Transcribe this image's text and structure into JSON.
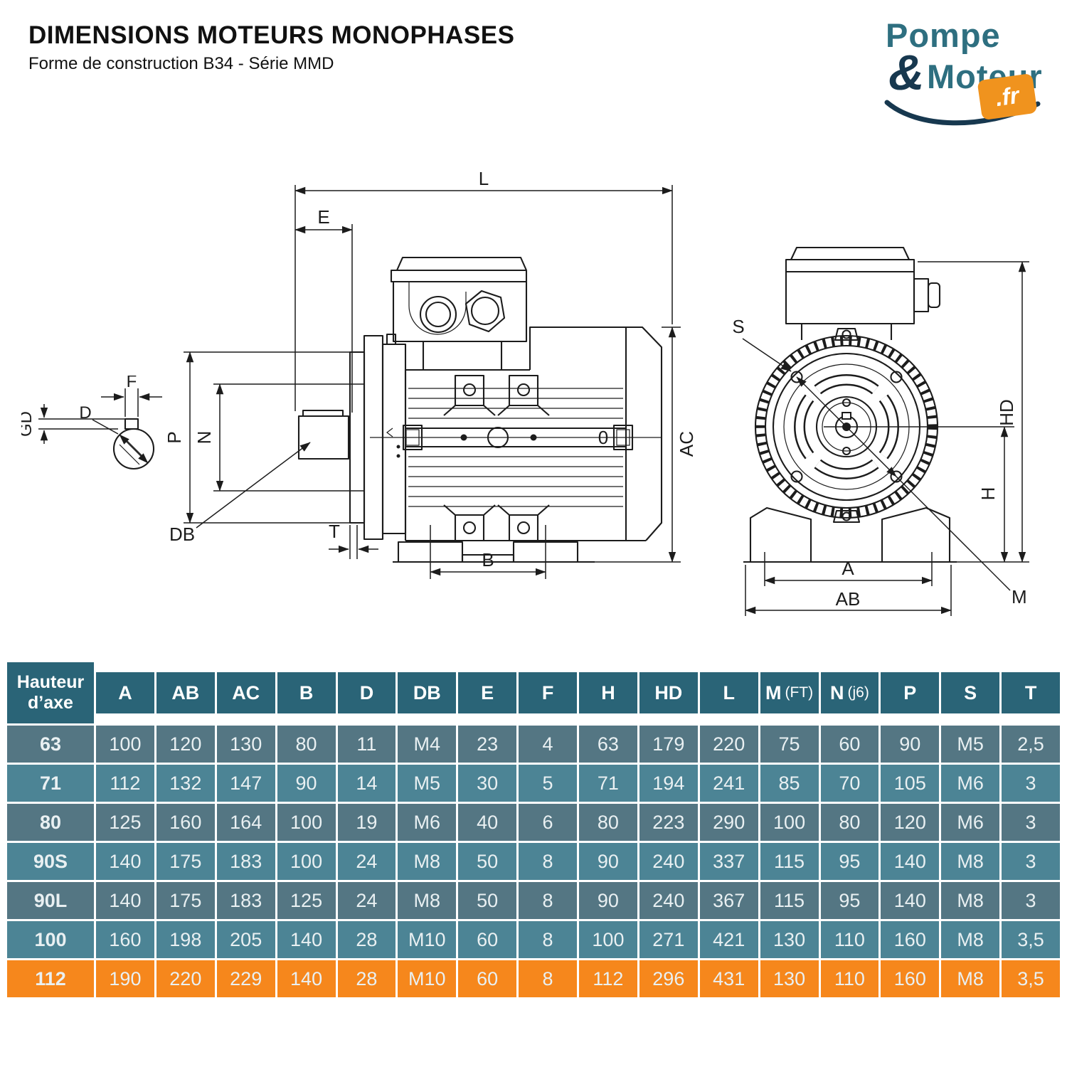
{
  "header": {
    "title": "DIMENSIONS MOTEURS MONOPHASES",
    "subtitle": "Forme de construction B34 - Série MMD"
  },
  "logo": {
    "word1": "Pompe",
    "amp": "&",
    "word2": "Moteur",
    "tld": ".fr",
    "teal": "#2e6f80",
    "navy": "#17384f",
    "orange": "#f0931e"
  },
  "diagrams": {
    "shaft_section": {
      "labels": {
        "f": "F",
        "d": "D",
        "gd": "GD"
      }
    },
    "side_view": {
      "labels": {
        "l": "L",
        "e": "E",
        "p": "P",
        "n": "N",
        "db": "DB",
        "t": "T",
        "b": "B",
        "ac": "AC",
        "o": "0"
      }
    },
    "front_view": {
      "labels": {
        "s": "S",
        "hd": "HD",
        "h": "H",
        "a": "A",
        "ab": "AB",
        "m": "M"
      }
    }
  },
  "table": {
    "corner_label": "Hauteur d’axe",
    "columns": [
      {
        "label": "A"
      },
      {
        "label": "AB"
      },
      {
        "label": "AC"
      },
      {
        "label": "B"
      },
      {
        "label": "D"
      },
      {
        "label": "DB"
      },
      {
        "label": "E"
      },
      {
        "label": "F"
      },
      {
        "label": "H"
      },
      {
        "label": "HD"
      },
      {
        "label": "L"
      },
      {
        "label": "M",
        "note": "(FT)"
      },
      {
        "label": "N",
        "note": "(j6)"
      },
      {
        "label": "P"
      },
      {
        "label": "S"
      },
      {
        "label": "T"
      }
    ],
    "rows": [
      {
        "label": "63",
        "variant": "dark",
        "values": [
          "100",
          "120",
          "130",
          "80",
          "11",
          "M4",
          "23",
          "4",
          "63",
          "179",
          "220",
          "75",
          "60",
          "90",
          "M5",
          "2,5"
        ]
      },
      {
        "label": "71",
        "variant": "light",
        "values": [
          "112",
          "132",
          "147",
          "90",
          "14",
          "M5",
          "30",
          "5",
          "71",
          "194",
          "241",
          "85",
          "70",
          "105",
          "M6",
          "3"
        ]
      },
      {
        "label": "80",
        "variant": "dark",
        "values": [
          "125",
          "160",
          "164",
          "100",
          "19",
          "M6",
          "40",
          "6",
          "80",
          "223",
          "290",
          "100",
          "80",
          "120",
          "M6",
          "3"
        ]
      },
      {
        "label": "90S",
        "variant": "light",
        "values": [
          "140",
          "175",
          "183",
          "100",
          "24",
          "M8",
          "50",
          "8",
          "90",
          "240",
          "337",
          "115",
          "95",
          "140",
          "M8",
          "3"
        ]
      },
      {
        "label": "90L",
        "variant": "dark",
        "values": [
          "140",
          "175",
          "183",
          "125",
          "24",
          "M8",
          "50",
          "8",
          "90",
          "240",
          "367",
          "115",
          "95",
          "140",
          "M8",
          "3"
        ]
      },
      {
        "label": "100",
        "variant": "light",
        "values": [
          "160",
          "198",
          "205",
          "140",
          "28",
          "M10",
          "60",
          "8",
          "100",
          "271",
          "421",
          "130",
          "110",
          "160",
          "M8",
          "3,5"
        ]
      },
      {
        "label": "112",
        "variant": "orange",
        "values": [
          "190",
          "220",
          "229",
          "140",
          "28",
          "M10",
          "60",
          "8",
          "112",
          "296",
          "431",
          "130",
          "110",
          "160",
          "M8",
          "3,5"
        ]
      }
    ],
    "colors": {
      "header_bg": "#2a6477",
      "row_dark": "#547683",
      "row_light": "#4c8495",
      "row_highlight": "#f6871c"
    }
  }
}
